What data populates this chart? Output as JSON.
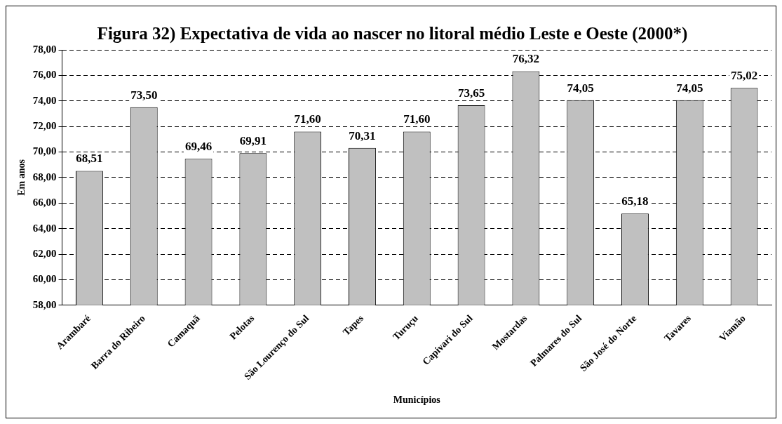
{
  "chart_data": {
    "type": "bar",
    "title": "Figura 32) Expectativa de vida ao nascer no litoral médio Leste e Oeste (2000*)",
    "xlabel": "Municípios",
    "ylabel": "Em anos",
    "categories": [
      "Arambaré",
      "Barra do Ribeiro",
      "Camaquã",
      "Pelotas",
      "São Lourenço do Sul",
      "Tapes",
      "Turuçu",
      "Capivari do Sul",
      "Mostardas",
      "Palmares do Sul",
      "São José do Norte",
      "Tavares",
      "Viamão"
    ],
    "values": [
      68.51,
      73.5,
      69.46,
      69.91,
      71.6,
      70.31,
      71.6,
      73.65,
      76.32,
      74.05,
      65.18,
      74.05,
      75.02
    ],
    "value_labels": [
      "68,51",
      "73,50",
      "69,46",
      "69,91",
      "71,60",
      "70,31",
      "71,60",
      "73,65",
      "76,32",
      "74,05",
      "65,18",
      "74,05",
      "75,02"
    ],
    "color": "#c0c0c0",
    "ylim": [
      58,
      78
    ],
    "yticks": [
      {
        "value": 58,
        "label": "58,00"
      },
      {
        "value": 60,
        "label": "60,00"
      },
      {
        "value": 62,
        "label": "62,00"
      },
      {
        "value": 64,
        "label": "64,00"
      },
      {
        "value": 66,
        "label": "66,00"
      },
      {
        "value": 68,
        "label": "68,00"
      },
      {
        "value": 70,
        "label": "70,00"
      },
      {
        "value": 72,
        "label": "72,00"
      },
      {
        "value": 74,
        "label": "74,00"
      },
      {
        "value": 76,
        "label": "76,00"
      },
      {
        "value": 78,
        "label": "78,00"
      }
    ],
    "grid": "y",
    "legend": false
  }
}
